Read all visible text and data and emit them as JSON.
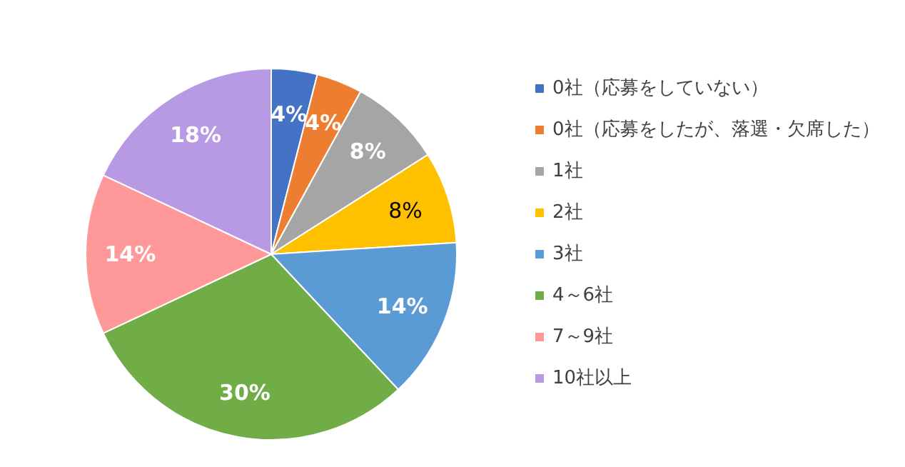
{
  "chart_data": {
    "type": "pie",
    "categories": [
      "0社（応募をしていない）",
      "0社（応募をしたが、落選・欠席した）",
      "1社",
      "2社",
      "3社",
      "4～6社",
      "7～9社",
      "10社以上"
    ],
    "values": [
      4,
      4,
      8,
      8,
      14,
      30,
      14,
      18
    ],
    "value_labels": [
      "4%",
      "4%",
      "8%",
      "8%",
      "14%",
      "30%",
      "14%",
      "18%"
    ],
    "colors": [
      "#4472c4",
      "#ed7d31",
      "#a5a5a5",
      "#ffc000",
      "#5b9bd5",
      "#70ad47",
      "#ff9999",
      "#b79ae3"
    ],
    "legend": "right"
  }
}
